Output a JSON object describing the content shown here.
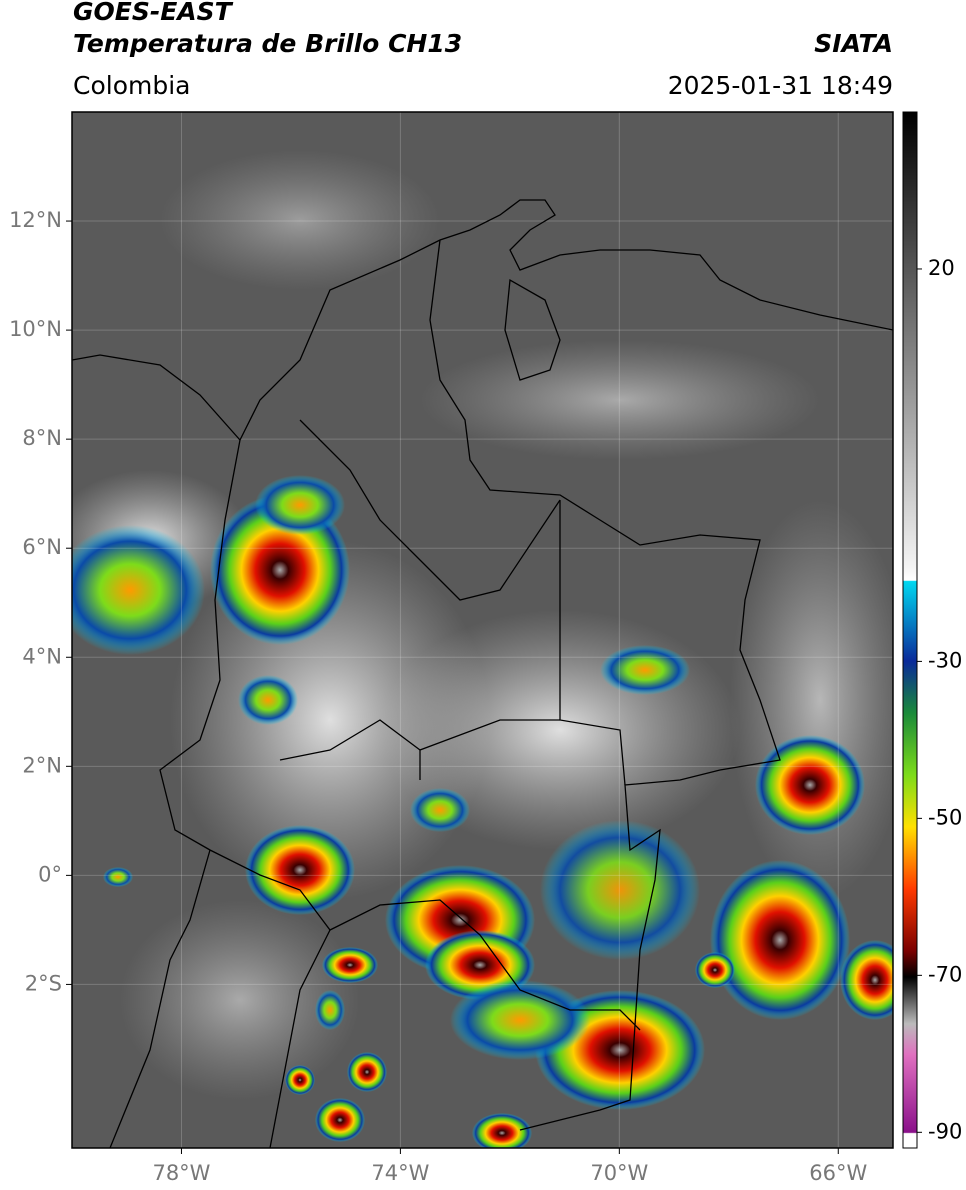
{
  "header": {
    "satellite": "GOES-EAST",
    "product": "Temperatura de Brillo CH13",
    "region": "Colombia",
    "agency": "SIATA",
    "datetime": "2025-01-31 18:49"
  },
  "map": {
    "xlim": [
      -80,
      -65
    ],
    "ylim": [
      -5,
      14
    ],
    "xticks": [
      {
        "value": -78,
        "label": "78°W"
      },
      {
        "value": -74,
        "label": "74°W"
      },
      {
        "value": -70,
        "label": "70°W"
      },
      {
        "value": -66,
        "label": "66°W"
      }
    ],
    "yticks": [
      {
        "value": 12,
        "label": "12°N"
      },
      {
        "value": 10,
        "label": "10°N"
      },
      {
        "value": 8,
        "label": "8°N"
      },
      {
        "value": 6,
        "label": "6°N"
      },
      {
        "value": 4,
        "label": "4°N"
      },
      {
        "value": 2,
        "label": "2°N"
      },
      {
        "value": 0,
        "label": "0°"
      },
      {
        "value": -2,
        "label": "2°S"
      }
    ],
    "grid": true
  },
  "colorbar": {
    "lim": [
      -92,
      40
    ],
    "ticks": [
      20,
      -30,
      -50,
      -70,
      -90
    ]
  }
}
